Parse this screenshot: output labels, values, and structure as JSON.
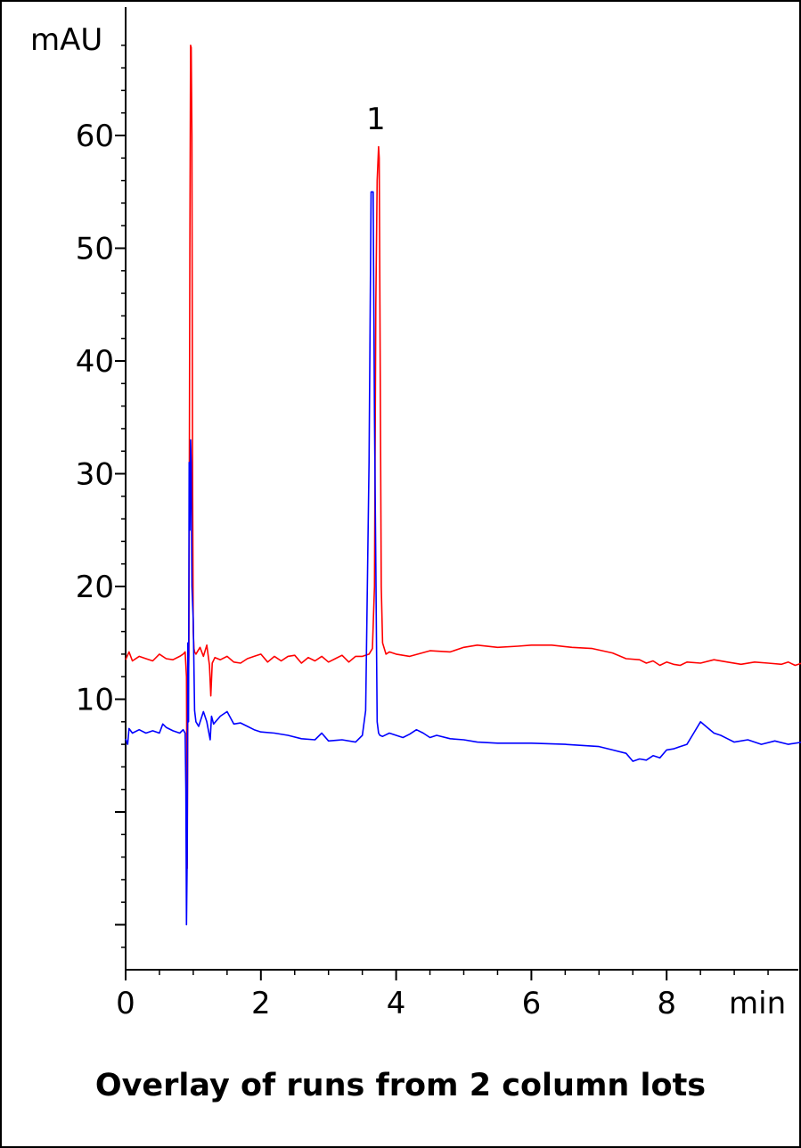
{
  "caption": "Overlay of runs from 2 column lots",
  "chart_data": {
    "type": "line",
    "title": "",
    "xlabel": "min",
    "ylabel": "mAU",
    "xlim": [
      0,
      10
    ],
    "ylim": [
      -10,
      70
    ],
    "x_ticks": [
      0,
      2,
      4,
      6,
      8
    ],
    "x_tick_labels": [
      "0",
      "2",
      "4",
      "6",
      "8"
    ],
    "y_ticks": [
      10,
      20,
      30,
      40,
      50,
      60
    ],
    "y_tick_labels": [
      "10",
      "20",
      "30",
      "40",
      "50",
      "60"
    ],
    "y_minor_ticks": [
      0,
      -10
    ],
    "annotations": [
      {
        "text": "1",
        "x": 3.7,
        "y": 61.5
      }
    ],
    "grid": false,
    "series": [
      {
        "color": "#ff0000",
        "x": [
          0.0,
          0.05,
          0.1,
          0.2,
          0.3,
          0.4,
          0.5,
          0.6,
          0.7,
          0.8,
          0.85,
          0.88,
          0.9,
          0.91,
          0.92,
          0.935,
          0.95,
          0.96,
          0.97,
          0.98,
          0.99,
          1.0,
          1.01,
          1.02,
          1.04,
          1.07,
          1.1,
          1.15,
          1.2,
          1.24,
          1.26,
          1.28,
          1.32,
          1.4,
          1.5,
          1.6,
          1.7,
          1.8,
          1.9,
          2.0,
          2.1,
          2.2,
          2.3,
          2.4,
          2.5,
          2.6,
          2.7,
          2.8,
          2.9,
          3.0,
          3.1,
          3.2,
          3.3,
          3.4,
          3.5,
          3.6,
          3.65,
          3.68,
          3.7,
          3.72,
          3.74,
          3.75,
          3.76,
          3.78,
          3.8,
          3.85,
          3.9,
          4.0,
          4.2,
          4.5,
          4.8,
          5.0,
          5.2,
          5.5,
          5.8,
          6.0,
          6.3,
          6.6,
          6.9,
          7.2,
          7.4,
          7.6,
          7.7,
          7.8,
          7.9,
          8.0,
          8.1,
          8.2,
          8.3,
          8.5,
          8.7,
          8.9,
          9.1,
          9.3,
          9.5,
          9.7,
          9.8,
          9.9,
          10.0
        ],
        "y": [
          13.5,
          14.2,
          13.4,
          13.8,
          13.6,
          13.4,
          14.0,
          13.6,
          13.5,
          13.8,
          14.0,
          14.2,
          12.0,
          -5.0,
          9.0,
          14.0,
          50.0,
          68.0,
          67.8,
          60.0,
          30.0,
          16.0,
          14.5,
          14.2,
          14.0,
          14.3,
          14.6,
          13.8,
          14.8,
          13.0,
          10.3,
          13.2,
          13.7,
          13.5,
          13.8,
          13.3,
          13.2,
          13.6,
          13.8,
          14.0,
          13.3,
          13.8,
          13.4,
          13.8,
          13.9,
          13.2,
          13.7,
          13.4,
          13.8,
          13.3,
          13.6,
          13.9,
          13.3,
          13.8,
          13.8,
          14.0,
          14.5,
          20.0,
          45.0,
          56.0,
          59.0,
          58.0,
          45.0,
          20.0,
          15.0,
          14.0,
          14.2,
          14.0,
          13.8,
          14.3,
          14.2,
          14.6,
          14.8,
          14.6,
          14.7,
          14.8,
          14.8,
          14.6,
          14.5,
          14.1,
          13.6,
          13.5,
          13.2,
          13.4,
          13.0,
          13.3,
          13.1,
          13.0,
          13.3,
          13.2,
          13.5,
          13.3,
          13.1,
          13.3,
          13.2,
          13.1,
          13.3,
          13.0,
          13.2
        ]
      },
      {
        "color": "#0000ff",
        "x": [
          0.0,
          0.03,
          0.05,
          0.1,
          0.2,
          0.3,
          0.4,
          0.5,
          0.55,
          0.6,
          0.7,
          0.8,
          0.85,
          0.88,
          0.89,
          0.9,
          0.91,
          0.92,
          0.93,
          0.94,
          0.95,
          0.96,
          0.97,
          0.98,
          1.0,
          1.02,
          1.04,
          1.08,
          1.15,
          1.2,
          1.25,
          1.27,
          1.3,
          1.4,
          1.5,
          1.6,
          1.7,
          1.8,
          1.9,
          2.0,
          2.2,
          2.4,
          2.6,
          2.8,
          2.9,
          3.0,
          3.2,
          3.4,
          3.5,
          3.55,
          3.6,
          3.63,
          3.66,
          3.68,
          3.7,
          3.72,
          3.74,
          3.76,
          3.8,
          3.9,
          4.0,
          4.1,
          4.2,
          4.3,
          4.4,
          4.5,
          4.6,
          4.8,
          5.0,
          5.2,
          5.5,
          6.0,
          6.5,
          7.0,
          7.2,
          7.4,
          7.5,
          7.6,
          7.7,
          7.8,
          7.9,
          8.0,
          8.1,
          8.2,
          8.3,
          8.4,
          8.5,
          8.6,
          8.7,
          8.8,
          8.9,
          9.0,
          9.2,
          9.4,
          9.6,
          9.8,
          10.0
        ],
        "y": [
          6.5,
          6.0,
          7.4,
          7.0,
          7.3,
          7.0,
          7.2,
          7.0,
          7.8,
          7.5,
          7.2,
          7.0,
          7.3,
          7.0,
          2.0,
          -10.0,
          -4.0,
          15.0,
          8.0,
          31.0,
          25.0,
          33.0,
          31.0,
          20.0,
          17.0,
          9.0,
          8.0,
          7.6,
          8.9,
          8.0,
          6.4,
          8.5,
          7.8,
          8.5,
          8.9,
          7.8,
          7.9,
          7.6,
          7.3,
          7.1,
          7.0,
          6.8,
          6.5,
          6.4,
          7.0,
          6.3,
          6.4,
          6.2,
          6.8,
          9.0,
          31.0,
          55.0,
          55.0,
          35.0,
          22.0,
          8.0,
          7.0,
          6.8,
          6.7,
          7.0,
          6.8,
          6.6,
          6.9,
          7.3,
          7.0,
          6.6,
          6.8,
          6.5,
          6.4,
          6.2,
          6.1,
          6.1,
          6.0,
          5.8,
          5.5,
          5.2,
          4.5,
          4.7,
          4.6,
          5.0,
          4.8,
          5.5,
          5.6,
          5.8,
          6.0,
          7.0,
          8.0,
          7.5,
          7.0,
          6.8,
          6.5,
          6.2,
          6.4,
          6.0,
          6.3,
          6.0,
          6.2
        ]
      }
    ]
  }
}
